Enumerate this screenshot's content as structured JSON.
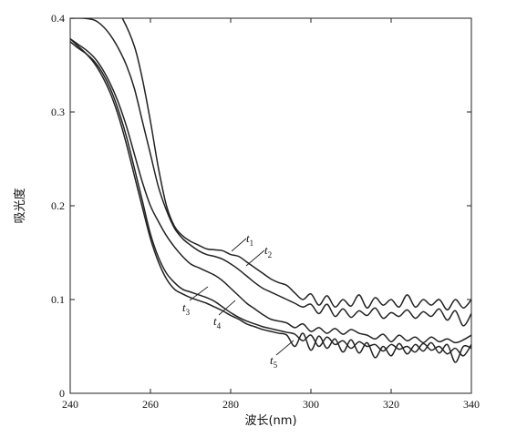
{
  "chart_data": {
    "type": "line",
    "title": "",
    "xlabel": "波长(nm)",
    "ylabel": "吸光度",
    "xlim": [
      240,
      340
    ],
    "ylim": [
      0,
      0.4
    ],
    "x_ticks": [
      {
        "value": 240,
        "label": "240"
      },
      {
        "value": 260,
        "label": "260"
      },
      {
        "value": 280,
        "label": "280"
      },
      {
        "value": 300,
        "label": "300"
      },
      {
        "value": 320,
        "label": "320"
      },
      {
        "value": 340,
        "label": "340"
      }
    ],
    "y_ticks": [
      {
        "value": 0,
        "label": "0"
      },
      {
        "value": 0.1,
        "label": "0.1"
      },
      {
        "value": 0.2,
        "label": "0.2"
      },
      {
        "value": 0.3,
        "label": "0.3"
      },
      {
        "value": 0.4,
        "label": "0.4"
      }
    ],
    "grid": false,
    "legend": "inline labels with leader lines",
    "series": [
      {
        "name": "t1",
        "label_main": "t",
        "label_sub": "1",
        "x": [
          251,
          253,
          256,
          258,
          260,
          262,
          264,
          266,
          268,
          270,
          272,
          274,
          276,
          278,
          280,
          282,
          284,
          286,
          288,
          290,
          292,
          294,
          296,
          298,
          300,
          302,
          304,
          306,
          308,
          310,
          312,
          314,
          316,
          318,
          320,
          322,
          324,
          326,
          328,
          330,
          332,
          334,
          336,
          338,
          340
        ],
        "y": [
          0.41,
          0.4,
          0.37,
          0.335,
          0.29,
          0.24,
          0.2,
          0.178,
          0.168,
          0.162,
          0.158,
          0.154,
          0.153,
          0.152,
          0.148,
          0.146,
          0.14,
          0.134,
          0.128,
          0.122,
          0.118,
          0.115,
          0.107,
          0.1,
          0.106,
          0.094,
          0.104,
          0.092,
          0.1,
          0.093,
          0.105,
          0.091,
          0.102,
          0.094,
          0.1,
          0.092,
          0.105,
          0.092,
          0.1,
          0.094,
          0.1,
          0.089,
          0.1,
          0.091,
          0.1
        ]
      },
      {
        "name": "t2",
        "label_main": "t",
        "label_sub": "2",
        "x": [
          240,
          243,
          246,
          248,
          250,
          252,
          254,
          256,
          258,
          260,
          262,
          264,
          266,
          268,
          270,
          272,
          274,
          276,
          278,
          280,
          282,
          284,
          286,
          288,
          290,
          292,
          294,
          296,
          298,
          300,
          302,
          304,
          306,
          308,
          310,
          312,
          314,
          316,
          318,
          320,
          322,
          324,
          326,
          328,
          330,
          332,
          334,
          336,
          338,
          340
        ],
        "y": [
          0.4,
          0.4,
          0.398,
          0.392,
          0.382,
          0.368,
          0.35,
          0.325,
          0.29,
          0.255,
          0.22,
          0.195,
          0.176,
          0.165,
          0.158,
          0.152,
          0.148,
          0.146,
          0.143,
          0.138,
          0.132,
          0.125,
          0.118,
          0.112,
          0.108,
          0.104,
          0.1,
          0.096,
          0.092,
          0.095,
          0.085,
          0.095,
          0.082,
          0.09,
          0.081,
          0.088,
          0.083,
          0.091,
          0.08,
          0.086,
          0.082,
          0.089,
          0.08,
          0.087,
          0.082,
          0.09,
          0.078,
          0.088,
          0.072,
          0.085
        ]
      },
      {
        "name": "t3",
        "label_main": "t",
        "label_sub": "3",
        "x": [
          240,
          242,
          244,
          246,
          248,
          250,
          252,
          254,
          256,
          258,
          260,
          262,
          264,
          266,
          268,
          270,
          272,
          274,
          276,
          278,
          280,
          282,
          284,
          286,
          288,
          290,
          292,
          294,
          296,
          298,
          300,
          302,
          304,
          306,
          308,
          310,
          312,
          314,
          316,
          318,
          320,
          322,
          324,
          326,
          328,
          330,
          332,
          334,
          336,
          338,
          340
        ],
        "y": [
          0.378,
          0.372,
          0.366,
          0.358,
          0.346,
          0.33,
          0.31,
          0.285,
          0.255,
          0.225,
          0.2,
          0.183,
          0.168,
          0.156,
          0.146,
          0.138,
          0.134,
          0.13,
          0.126,
          0.12,
          0.112,
          0.104,
          0.096,
          0.09,
          0.084,
          0.079,
          0.077,
          0.075,
          0.07,
          0.074,
          0.066,
          0.07,
          0.064,
          0.069,
          0.063,
          0.068,
          0.064,
          0.062,
          0.058,
          0.063,
          0.055,
          0.062,
          0.056,
          0.06,
          0.054,
          0.06,
          0.055,
          0.058,
          0.054,
          0.057,
          0.062
        ]
      },
      {
        "name": "t4",
        "label_main": "t",
        "label_sub": "4",
        "x": [
          240,
          242,
          244,
          246,
          248,
          250,
          252,
          254,
          256,
          258,
          260,
          262,
          264,
          266,
          268,
          270,
          272,
          274,
          276,
          278,
          280,
          282,
          284,
          286,
          288,
          290,
          292,
          294,
          296,
          298,
          300,
          302,
          304,
          306,
          308,
          310,
          312,
          314,
          316,
          318,
          320,
          322,
          324,
          326,
          328,
          330,
          332,
          334,
          336,
          338,
          340
        ],
        "y": [
          0.375,
          0.368,
          0.362,
          0.354,
          0.342,
          0.325,
          0.302,
          0.274,
          0.24,
          0.205,
          0.17,
          0.145,
          0.128,
          0.118,
          0.111,
          0.108,
          0.105,
          0.102,
          0.098,
          0.092,
          0.086,
          0.081,
          0.077,
          0.074,
          0.071,
          0.069,
          0.067,
          0.065,
          0.063,
          0.056,
          0.062,
          0.05,
          0.06,
          0.052,
          0.056,
          0.048,
          0.055,
          0.05,
          0.052,
          0.045,
          0.052,
          0.047,
          0.05,
          0.044,
          0.053,
          0.046,
          0.05,
          0.042,
          0.048,
          0.04,
          0.052
        ]
      },
      {
        "name": "t5",
        "label_main": "t",
        "label_sub": "5",
        "x": [
          240,
          242,
          244,
          246,
          248,
          250,
          252,
          254,
          256,
          258,
          260,
          262,
          264,
          266,
          268,
          270,
          272,
          274,
          276,
          278,
          280,
          282,
          284,
          286,
          288,
          290,
          292,
          294,
          296,
          298,
          300,
          302,
          304,
          306,
          308,
          310,
          312,
          314,
          316,
          318,
          320,
          322,
          324,
          326,
          328,
          330,
          332,
          334,
          336,
          338,
          340
        ],
        "y": [
          0.378,
          0.37,
          0.362,
          0.352,
          0.338,
          0.32,
          0.296,
          0.266,
          0.232,
          0.198,
          0.165,
          0.14,
          0.122,
          0.111,
          0.106,
          0.102,
          0.099,
          0.096,
          0.092,
          0.088,
          0.083,
          0.079,
          0.074,
          0.071,
          0.068,
          0.066,
          0.064,
          0.062,
          0.05,
          0.064,
          0.046,
          0.061,
          0.048,
          0.058,
          0.044,
          0.057,
          0.043,
          0.054,
          0.038,
          0.05,
          0.04,
          0.053,
          0.042,
          0.052,
          0.045,
          0.054,
          0.043,
          0.052,
          0.033,
          0.05,
          0.048
        ]
      }
    ]
  }
}
